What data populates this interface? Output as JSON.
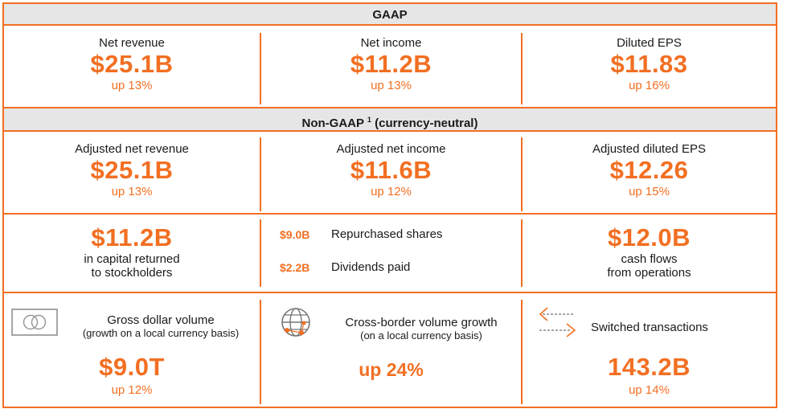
{
  "colors": {
    "accent": "#F26F22",
    "header_bg": "#e6e6e6",
    "text": "#1a1a1a"
  },
  "gaap": {
    "header": "GAAP",
    "metrics": [
      {
        "label": "Net revenue",
        "value": "$25.1B",
        "change": "up 13%"
      },
      {
        "label": "Net income",
        "value": "$11.2B",
        "change": "up 13%"
      },
      {
        "label": "Diluted EPS",
        "value": "$11.83",
        "change": "up 16%"
      }
    ]
  },
  "non_gaap": {
    "header": "Non-GAAP",
    "footnote": "1",
    "header_suffix": "(currency-neutral)",
    "metrics": [
      {
        "label": "Adjusted net revenue",
        "value": "$25.1B",
        "change": "up 13%"
      },
      {
        "label": "Adjusted net income",
        "value": "$11.6B",
        "change": "up 12%"
      },
      {
        "label": "Adjusted diluted EPS",
        "value": "$12.26",
        "change": "up 15%"
      }
    ]
  },
  "capital": {
    "returned_value": "$11.2B",
    "returned_label_1": "in capital returned",
    "returned_label_2": "to stockholders",
    "items": [
      {
        "amount": "$9.0B",
        "label": "Repurchased shares"
      },
      {
        "amount": "$2.2B",
        "label": "Dividends paid"
      }
    ],
    "cash_value": "$12.0B",
    "cash_label_1": "cash flows",
    "cash_label_2": "from operations"
  },
  "volume": [
    {
      "icon": "card-icon",
      "title": "Gross dollar volume",
      "subtitle": "(growth on a local currency basis)",
      "value": "$9.0T",
      "change": "up 12%"
    },
    {
      "icon": "globe-icon",
      "title": "Cross-border volume growth",
      "subtitle": "(on a local currency basis)",
      "value": "up 24%"
    },
    {
      "icon": "switch-arrows-icon",
      "title": "Switched transactions",
      "value": "143.2B",
      "change": "up 14%"
    }
  ]
}
